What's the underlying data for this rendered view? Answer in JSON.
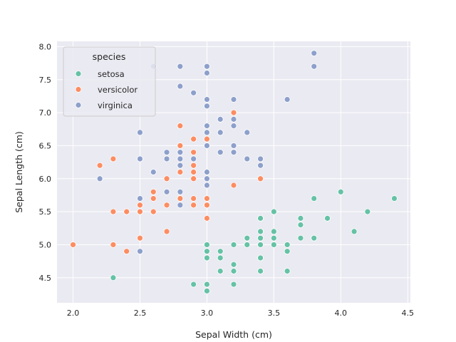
{
  "chart_data": {
    "type": "scatter",
    "xlabel": "Sepal Width (cm)",
    "ylabel": "Sepal Length (cm)",
    "xlim": [
      1.88,
      4.52
    ],
    "ylim": [
      4.12,
      8.08
    ],
    "xticks": [
      "2.0",
      "2.5",
      "3.0",
      "3.5",
      "4.0",
      "4.5"
    ],
    "yticks": [
      "4.5",
      "5.0",
      "5.5",
      "6.0",
      "6.5",
      "7.0",
      "7.5",
      "8.0"
    ],
    "grid": true,
    "legend": {
      "title": "species",
      "placement": "top-left"
    },
    "series": [
      {
        "name": "setosa",
        "color": "#66c2a5",
        "points": [
          [
            3.5,
            5.1
          ],
          [
            3.0,
            4.9
          ],
          [
            3.2,
            4.7
          ],
          [
            3.1,
            4.6
          ],
          [
            3.6,
            5.0
          ],
          [
            3.9,
            5.4
          ],
          [
            3.4,
            4.6
          ],
          [
            3.4,
            5.0
          ],
          [
            2.9,
            4.4
          ],
          [
            3.1,
            4.9
          ],
          [
            3.7,
            5.4
          ],
          [
            3.4,
            4.8
          ],
          [
            3.0,
            4.8
          ],
          [
            3.0,
            4.3
          ],
          [
            4.0,
            5.8
          ],
          [
            4.4,
            5.7
          ],
          [
            3.9,
            5.4
          ],
          [
            3.5,
            5.1
          ],
          [
            3.8,
            5.7
          ],
          [
            3.8,
            5.1
          ],
          [
            3.4,
            5.4
          ],
          [
            3.7,
            5.1
          ],
          [
            3.6,
            4.6
          ],
          [
            3.3,
            5.1
          ],
          [
            3.4,
            4.8
          ],
          [
            3.0,
            5.0
          ],
          [
            3.4,
            5.0
          ],
          [
            3.5,
            5.2
          ],
          [
            3.4,
            5.2
          ],
          [
            3.2,
            4.7
          ],
          [
            3.1,
            4.8
          ],
          [
            3.4,
            5.4
          ],
          [
            4.1,
            5.2
          ],
          [
            4.2,
            5.5
          ],
          [
            3.1,
            4.9
          ],
          [
            3.2,
            5.0
          ],
          [
            3.5,
            5.5
          ],
          [
            3.6,
            4.9
          ],
          [
            3.0,
            4.4
          ],
          [
            3.4,
            5.1
          ],
          [
            3.5,
            5.0
          ],
          [
            2.3,
            4.5
          ],
          [
            3.2,
            4.4
          ],
          [
            3.5,
            5.0
          ],
          [
            3.8,
            5.1
          ],
          [
            3.0,
            4.8
          ],
          [
            3.8,
            5.1
          ],
          [
            3.2,
            4.6
          ],
          [
            3.7,
            5.3
          ],
          [
            3.3,
            5.0
          ]
        ]
      },
      {
        "name": "versicolor",
        "color": "#fc8d62",
        "points": [
          [
            3.2,
            7.0
          ],
          [
            3.2,
            6.4
          ],
          [
            3.1,
            6.9
          ],
          [
            2.3,
            5.5
          ],
          [
            2.8,
            6.5
          ],
          [
            2.8,
            5.7
          ],
          [
            3.3,
            6.3
          ],
          [
            2.4,
            4.9
          ],
          [
            2.9,
            6.6
          ],
          [
            2.7,
            5.2
          ],
          [
            2.0,
            5.0
          ],
          [
            3.0,
            5.9
          ],
          [
            2.2,
            6.0
          ],
          [
            2.9,
            6.1
          ],
          [
            2.9,
            5.6
          ],
          [
            3.1,
            6.7
          ],
          [
            3.0,
            5.6
          ],
          [
            2.7,
            5.8
          ],
          [
            2.2,
            6.2
          ],
          [
            2.5,
            5.6
          ],
          [
            3.2,
            5.9
          ],
          [
            2.8,
            6.1
          ],
          [
            2.5,
            6.3
          ],
          [
            2.8,
            6.1
          ],
          [
            2.9,
            6.4
          ],
          [
            3.0,
            6.6
          ],
          [
            2.8,
            6.8
          ],
          [
            3.0,
            6.7
          ],
          [
            2.9,
            6.0
          ],
          [
            2.6,
            5.7
          ],
          [
            2.4,
            5.5
          ],
          [
            2.4,
            5.5
          ],
          [
            2.7,
            5.8
          ],
          [
            2.7,
            6.0
          ],
          [
            3.0,
            5.4
          ],
          [
            3.4,
            6.0
          ],
          [
            3.1,
            6.7
          ],
          [
            2.3,
            6.3
          ],
          [
            3.0,
            5.6
          ],
          [
            2.5,
            5.5
          ],
          [
            2.6,
            5.5
          ],
          [
            3.0,
            6.1
          ],
          [
            2.6,
            5.8
          ],
          [
            2.3,
            5.0
          ],
          [
            2.7,
            5.6
          ],
          [
            3.0,
            5.7
          ],
          [
            2.9,
            5.7
          ],
          [
            2.9,
            6.2
          ],
          [
            2.5,
            5.1
          ],
          [
            2.8,
            5.7
          ]
        ]
      },
      {
        "name": "virginica",
        "color": "#8da0cb",
        "points": [
          [
            3.3,
            6.3
          ],
          [
            2.7,
            5.8
          ],
          [
            3.0,
            7.1
          ],
          [
            2.9,
            6.3
          ],
          [
            3.0,
            6.5
          ],
          [
            3.0,
            7.6
          ],
          [
            2.5,
            4.9
          ],
          [
            2.9,
            7.3
          ],
          [
            2.5,
            6.7
          ],
          [
            3.6,
            7.2
          ],
          [
            3.2,
            6.5
          ],
          [
            2.7,
            6.4
          ],
          [
            3.0,
            6.8
          ],
          [
            2.5,
            5.7
          ],
          [
            2.8,
            5.8
          ],
          [
            3.2,
            6.4
          ],
          [
            3.0,
            6.5
          ],
          [
            3.8,
            7.7
          ],
          [
            2.6,
            7.7
          ],
          [
            2.2,
            6.0
          ],
          [
            3.2,
            6.9
          ],
          [
            2.8,
            5.6
          ],
          [
            2.8,
            7.7
          ],
          [
            2.7,
            6.3
          ],
          [
            3.3,
            6.7
          ],
          [
            3.2,
            7.2
          ],
          [
            2.8,
            6.2
          ],
          [
            3.0,
            6.1
          ],
          [
            2.8,
            6.4
          ],
          [
            3.0,
            7.2
          ],
          [
            2.8,
            7.4
          ],
          [
            3.8,
            7.9
          ],
          [
            2.8,
            6.4
          ],
          [
            2.8,
            6.3
          ],
          [
            2.6,
            6.1
          ],
          [
            3.0,
            7.7
          ],
          [
            3.4,
            6.3
          ],
          [
            3.1,
            6.4
          ],
          [
            3.0,
            6.0
          ],
          [
            3.1,
            6.9
          ],
          [
            3.1,
            6.7
          ],
          [
            3.1,
            6.9
          ],
          [
            2.7,
            5.8
          ],
          [
            3.2,
            6.8
          ],
          [
            3.3,
            6.7
          ],
          [
            3.0,
            6.7
          ],
          [
            2.5,
            6.3
          ],
          [
            3.0,
            6.5
          ],
          [
            3.4,
            6.2
          ],
          [
            3.0,
            5.9
          ]
        ]
      }
    ]
  }
}
